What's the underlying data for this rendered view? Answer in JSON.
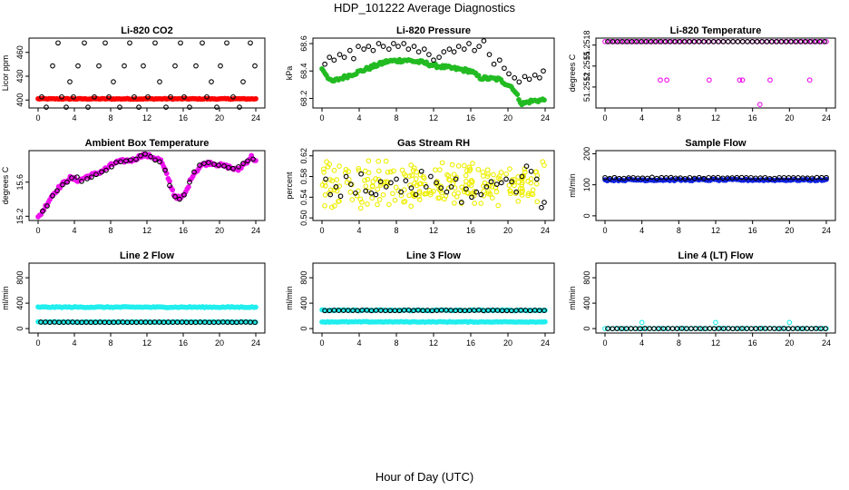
{
  "title": "HDP_101222  Average Diagnostics",
  "xlabel": "Hour of Day (UTC)",
  "colors": {
    "black": "#000000",
    "red": "#ff0000",
    "green": "#22bb22",
    "magenta": "#ee11ee",
    "yellow": "#eeee00",
    "blue": "#1122dd",
    "cyan": "#22eeee"
  },
  "chart_data": [
    {
      "type": "scatter",
      "title": "Li-820 CO2",
      "ylabel": "Licor ppm",
      "xlim": [
        0,
        24
      ],
      "ylim": [
        390,
        478
      ],
      "xticks": [
        "0",
        "4",
        "8",
        "12",
        "16",
        "20",
        "24"
      ],
      "yticks": [
        "400",
        "430",
        "460"
      ],
      "series": [
        {
          "name": "avg",
          "color": "red",
          "filled": true,
          "x_start": 0,
          "x_end": 24,
          "count": 140,
          "values": [
            401,
            402
          ]
        },
        {
          "name": "spikes",
          "color": "black",
          "filled": false,
          "x": [
            0.4,
            0.9,
            1.6,
            2.2,
            2.6,
            3.1,
            3.5,
            3.9,
            4.4,
            5.1,
            5.5,
            6.2,
            6.7,
            7.4,
            7.8,
            8.3,
            9.0,
            9.5,
            10.1,
            10.6,
            11.1,
            11.6,
            12.1,
            12.9,
            13.4,
            14.1,
            14.6,
            15.1,
            15.7,
            16.1,
            16.7,
            17.4,
            18.1,
            18.6,
            19.1,
            19.7,
            20.1,
            20.8,
            21.5,
            22.2,
            22.6,
            23.4,
            23.9
          ],
          "y": [
            404,
            391,
            443,
            472,
            404,
            391,
            423,
            404,
            443,
            472,
            391,
            404,
            443,
            472,
            404,
            423,
            391,
            443,
            472,
            404,
            391,
            443,
            404,
            472,
            423,
            391,
            404,
            443,
            472,
            404,
            391,
            443,
            472,
            404,
            423,
            391,
            443,
            472,
            404,
            391,
            423,
            472,
            443
          ]
        }
      ]
    },
    {
      "type": "scatter",
      "title": "Li-820 Pressure",
      "ylabel": "kPa",
      "xlim": [
        0,
        24
      ],
      "ylim": [
        68.13,
        68.64
      ],
      "xticks": [
        "0",
        "4",
        "8",
        "12",
        "16",
        "20",
        "24"
      ],
      "yticks": [
        "68.2",
        "68.4",
        "68.6"
      ],
      "series": [
        {
          "name": "green",
          "color": "green",
          "filled": true,
          "x_start": 0,
          "x_end": 23.9,
          "keys_x": [
            0,
            1,
            3,
            5,
            7,
            9,
            11,
            12,
            14,
            16,
            17,
            19,
            20.5,
            21.5,
            22.5,
            23.9
          ],
          "keys_y": [
            68.42,
            68.32,
            68.37,
            68.42,
            68.47,
            68.48,
            68.46,
            68.44,
            68.42,
            68.4,
            68.35,
            68.34,
            68.28,
            68.16,
            68.18,
            68.19
          ]
        },
        {
          "name": "black",
          "color": "black",
          "filled": false,
          "x": [
            0.3,
            0.8,
            1.3,
            1.9,
            2.4,
            3.0,
            3.4,
            3.9,
            4.5,
            5.0,
            5.5,
            6.1,
            6.6,
            7.2,
            7.7,
            8.2,
            8.8,
            9.3,
            9.9,
            10.4,
            11.0,
            11.5,
            12.0,
            12.6,
            13.1,
            13.7,
            14.2,
            14.7,
            15.3,
            15.8,
            16.4,
            16.9,
            17.4,
            18.0,
            18.5,
            19.1,
            19.6,
            20.1,
            20.7,
            21.2,
            21.8,
            22.3,
            22.9,
            23.4,
            23.8
          ],
          "y": [
            68.45,
            68.5,
            68.48,
            68.52,
            68.5,
            68.55,
            68.49,
            68.58,
            68.56,
            68.58,
            68.55,
            68.6,
            68.58,
            68.56,
            68.6,
            68.58,
            68.6,
            68.56,
            68.58,
            68.54,
            68.56,
            68.52,
            68.48,
            68.5,
            68.54,
            68.56,
            68.54,
            68.58,
            68.56,
            68.6,
            68.55,
            68.58,
            68.62,
            68.52,
            68.45,
            68.48,
            68.42,
            68.38,
            68.35,
            68.32,
            68.36,
            68.34,
            68.37,
            68.35,
            68.4
          ]
        }
      ]
    },
    {
      "type": "scatter",
      "title": "Li-820 Temperature",
      "ylabel": "degrees C",
      "xlim": [
        0,
        24
      ],
      "ylim": [
        51.2509,
        51.2519
      ],
      "xticks": [
        "0",
        "4",
        "8",
        "12",
        "16",
        "20",
        "24"
      ],
      "yticks": [
        "51.2512",
        "51.2515",
        "51.2518"
      ],
      "series": [
        {
          "name": "avg",
          "color": "magenta",
          "filled": false,
          "x_start": 0,
          "x_end": 24,
          "count": 46,
          "values": [
            51.25185,
            51.25185
          ]
        },
        {
          "name": "dips",
          "color": "magenta",
          "filled": false,
          "x": [
            6.0,
            6.7,
            11.3,
            14.6,
            14.9,
            16.8,
            17.9,
            22.2
          ],
          "y": [
            51.2513,
            51.2513,
            51.2513,
            51.2513,
            51.2513,
            51.25095,
            51.2513,
            51.2513
          ]
        },
        {
          "name": "black",
          "color": "black",
          "filled": false,
          "x_start": 0.3,
          "x_end": 23.8,
          "count": 46,
          "values": [
            51.25185,
            51.25185
          ]
        }
      ]
    },
    {
      "type": "scatter",
      "title": "Ambient Box Temperature",
      "ylabel": "degrees C",
      "xlim": [
        0,
        24
      ],
      "ylim": [
        15.15,
        15.97
      ],
      "xticks": [
        "0",
        "4",
        "8",
        "12",
        "16",
        "20",
        "24"
      ],
      "yticks": [
        "15.2",
        "15.6"
      ],
      "series": [
        {
          "name": "magenta",
          "color": "magenta",
          "filled": true,
          "x_start": 0,
          "x_end": 24,
          "keys_x": [
            0,
            0.5,
            1.5,
            2.5,
            3.5,
            4.5,
            5.5,
            6.5,
            7.5,
            8.5,
            9.5,
            10.5,
            11.5,
            12.5,
            13.5,
            14.3,
            15,
            15.7,
            16.3,
            17,
            18,
            19,
            20,
            21,
            22,
            22.5,
            23,
            23.5,
            24
          ],
          "keys_y": [
            15.18,
            15.26,
            15.44,
            15.56,
            15.65,
            15.62,
            15.67,
            15.7,
            15.76,
            15.83,
            15.85,
            15.86,
            15.92,
            15.9,
            15.86,
            15.66,
            15.45,
            15.4,
            15.48,
            15.68,
            15.8,
            15.83,
            15.8,
            15.78,
            15.74,
            15.79,
            15.84,
            15.9,
            15.85
          ]
        },
        {
          "name": "black",
          "color": "black",
          "filled": false,
          "x": [
            0.5,
            1.0,
            1.6,
            2.1,
            2.7,
            3.2,
            3.7,
            4.3,
            4.8,
            5.4,
            5.9,
            6.4,
            7.0,
            7.5,
            8.1,
            8.6,
            9.1,
            9.7,
            10.2,
            10.8,
            11.3,
            11.8,
            12.4,
            12.9,
            13.4,
            14.0,
            14.5,
            15.1,
            15.6,
            16.1,
            16.7,
            17.2,
            17.8,
            18.3,
            18.8,
            19.4,
            19.9,
            20.5,
            21.0,
            21.5,
            22.1,
            22.6,
            23.1,
            23.7
          ],
          "y": [
            15.26,
            15.32,
            15.44,
            15.5,
            15.57,
            15.6,
            15.65,
            15.66,
            15.61,
            15.64,
            15.66,
            15.69,
            15.72,
            15.74,
            15.78,
            15.83,
            15.84,
            15.85,
            15.86,
            15.87,
            15.91,
            15.93,
            15.9,
            15.86,
            15.84,
            15.74,
            15.56,
            15.43,
            15.4,
            15.45,
            15.6,
            15.72,
            15.8,
            15.82,
            15.83,
            15.81,
            15.8,
            15.79,
            15.77,
            15.76,
            15.78,
            15.82,
            15.85,
            15.87
          ]
        }
      ]
    },
    {
      "type": "scatter",
      "title": "Gas Stream RH",
      "ylabel": "percent",
      "xlim": [
        0,
        24
      ],
      "ylim": [
        0.495,
        0.63
      ],
      "xticks": [
        "0",
        "4",
        "8",
        "12",
        "16",
        "20",
        "24"
      ],
      "yticks": [
        "0.50",
        "0.54",
        "0.58",
        "0.62"
      ],
      "series": [
        {
          "name": "yellow",
          "color": "yellow",
          "filled": false,
          "x_start": 0,
          "x_end": 24,
          "count": 240,
          "center": 0.565,
          "spread": 0.035
        },
        {
          "name": "black",
          "color": "black",
          "filled": false,
          "x": [
            0.4,
            0.9,
            1.5,
            2.0,
            2.6,
            3.1,
            3.6,
            4.2,
            4.7,
            5.3,
            5.8,
            6.3,
            6.9,
            7.4,
            8.0,
            8.5,
            9.0,
            9.6,
            10.1,
            10.7,
            11.2,
            11.7,
            12.3,
            12.8,
            13.4,
            13.9,
            14.4,
            15.0,
            15.5,
            16.1,
            16.6,
            17.1,
            17.7,
            18.2,
            18.8,
            19.3,
            19.8,
            20.4,
            20.9,
            21.5,
            22.0,
            22.5,
            23.1,
            23.6,
            23.9
          ],
          "y": [
            0.575,
            0.545,
            0.56,
            0.542,
            0.58,
            0.565,
            0.548,
            0.585,
            0.552,
            0.548,
            0.545,
            0.57,
            0.56,
            0.568,
            0.575,
            0.55,
            0.572,
            0.558,
            0.545,
            0.59,
            0.56,
            0.58,
            0.568,
            0.558,
            0.55,
            0.56,
            0.575,
            0.53,
            0.556,
            0.54,
            0.55,
            0.545,
            0.56,
            0.57,
            0.565,
            0.568,
            0.575,
            0.57,
            0.55,
            0.58,
            0.6,
            0.59,
            0.575,
            0.52,
            0.53
          ]
        }
      ]
    },
    {
      "type": "scatter",
      "title": "Sample Flow",
      "ylabel": "ml/min",
      "xlim": [
        0,
        24
      ],
      "ylim": [
        -15,
        210
      ],
      "xticks": [
        "0",
        "4",
        "8",
        "12",
        "16",
        "20",
        "24"
      ],
      "yticks": [
        "0",
        "100",
        "200"
      ],
      "series": [
        {
          "name": "blue",
          "color": "blue",
          "filled": true,
          "x_start": 0,
          "x_end": 24,
          "count": 100,
          "values": [
            113,
            118
          ]
        },
        {
          "name": "black",
          "color": "black",
          "filled": false,
          "x_start": 0,
          "x_end": 24,
          "count": 48,
          "values": [
            120,
            124
          ]
        }
      ]
    },
    {
      "type": "scatter",
      "title": "Line 2 Flow",
      "ylabel": "ml/min",
      "xlim": [
        0,
        24
      ],
      "ylim": [
        -70,
        1030
      ],
      "xticks": [
        "0",
        "4",
        "8",
        "12",
        "16",
        "20",
        "24"
      ],
      "yticks": [
        "0",
        "400",
        "800"
      ],
      "series": [
        {
          "name": "cyan-high",
          "color": "cyan",
          "filled": true,
          "x_start": 0,
          "x_end": 24,
          "count": 120,
          "values": [
            330,
            345
          ]
        },
        {
          "name": "cyan-low",
          "color": "cyan",
          "filled": true,
          "x_start": 0,
          "x_end": 24,
          "count": 100,
          "values": [
            100,
            108
          ]
        },
        {
          "name": "black",
          "color": "black",
          "filled": false,
          "x_start": 0.3,
          "x_end": 23.9,
          "count": 48,
          "values": [
            98,
            102
          ]
        }
      ]
    },
    {
      "type": "scatter",
      "title": "Line 3 Flow",
      "ylabel": "ml/min",
      "xlim": [
        0,
        24
      ],
      "ylim": [
        -70,
        1030
      ],
      "xticks": [
        "0",
        "4",
        "8",
        "12",
        "16",
        "20",
        "24"
      ],
      "yticks": [
        "0",
        "400",
        "800"
      ],
      "series": [
        {
          "name": "cyan-low",
          "color": "cyan",
          "filled": true,
          "x_start": 0,
          "x_end": 24,
          "count": 120,
          "values": [
            100,
            110
          ]
        },
        {
          "name": "cyan-high",
          "color": "cyan",
          "filled": true,
          "x_start": 0,
          "x_end": 24,
          "count": 100,
          "values": [
            280,
            295
          ]
        },
        {
          "name": "black",
          "color": "black",
          "filled": false,
          "x_start": 0.3,
          "x_end": 23.9,
          "count": 48,
          "values": [
            282,
            290
          ]
        }
      ]
    },
    {
      "type": "scatter",
      "title": "Line 4 (LT) Flow",
      "ylabel": "ml/min",
      "xlim": [
        0,
        24
      ],
      "ylim": [
        -70,
        1030
      ],
      "xticks": [
        "0",
        "4",
        "8",
        "12",
        "16",
        "20",
        "24"
      ],
      "yticks": [
        "0",
        "400",
        "800"
      ],
      "series": [
        {
          "name": "cyan",
          "color": "cyan",
          "filled": false,
          "x_start": 0,
          "x_end": 24,
          "count": 60,
          "values": [
            -2,
            4
          ]
        },
        {
          "name": "cyan-spikes",
          "color": "cyan",
          "filled": false,
          "x": [
            4.0,
            12.0,
            20.0
          ],
          "y": [
            95,
            95,
            95
          ]
        },
        {
          "name": "black",
          "color": "black",
          "filled": false,
          "x_start": 0.3,
          "x_end": 23.9,
          "count": 48,
          "values": [
            -1,
            2
          ]
        }
      ]
    }
  ]
}
